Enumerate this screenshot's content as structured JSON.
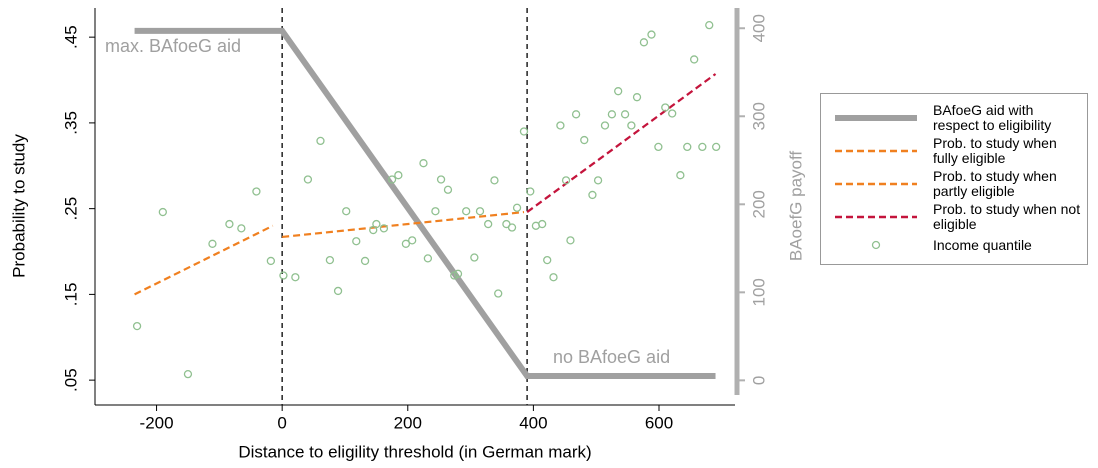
{
  "chart_data": {
    "type": "line",
    "xlabel": "Distance to eligility threshold (in German mark)",
    "ylabel": "Probability to study",
    "y2label": "BAoefG payoff",
    "annotations": [
      "max. BAfoeG aid",
      "no BAfoeG aid"
    ],
    "xlim": [
      -298,
      721
    ],
    "xticks": [
      -200,
      0,
      200,
      400,
      600
    ],
    "ylim": [
      0.021,
      0.484
    ],
    "yticks": [
      {
        "value": 0.05,
        "label": ".05"
      },
      {
        "value": 0.15,
        "label": ".15"
      },
      {
        "value": 0.25,
        "label": ".25"
      },
      {
        "value": 0.35,
        "label": ".35"
      },
      {
        "value": 0.45,
        "label": ".45"
      }
    ],
    "y2lim": [
      -28,
      423
    ],
    "y2ticks": [
      0,
      100,
      200,
      300,
      400
    ],
    "vlines": [
      0,
      390
    ],
    "series": [
      {
        "name": "BAfoeG aid with respect to eligibility",
        "type": "line",
        "axis": "y2",
        "color": "#a0a0a0",
        "dashed": false,
        "x": [
          -235,
          0,
          390,
          690
        ],
        "values": [
          397,
          397,
          5,
          5
        ]
      },
      {
        "name": "Prob. to study when fully eligible",
        "type": "line",
        "color": "#f08020",
        "dashed": true,
        "x": [
          -235,
          -15
        ],
        "values": [
          0.15,
          0.23
        ]
      },
      {
        "name": "Prob. to study when partly eligible",
        "type": "line",
        "color": "#f08020",
        "dashed": true,
        "x": [
          0,
          385
        ],
        "values": [
          0.217,
          0.246
        ]
      },
      {
        "name": "Prob. to study when not eligible",
        "type": "line",
        "color": "#c4143c",
        "dashed": true,
        "x": [
          390,
          690
        ],
        "values": [
          0.246,
          0.407
        ]
      },
      {
        "name": "Income quantile",
        "type": "scatter",
        "color": "#90c090",
        "x": [
          -231,
          -190,
          -150,
          -111,
          -84,
          -65,
          -41,
          -18,
          2,
          21,
          41,
          61,
          76,
          89,
          102,
          118,
          132,
          145,
          150,
          162,
          175,
          185,
          197,
          207,
          225,
          232,
          244,
          253,
          264,
          274,
          280,
          293,
          306,
          315,
          328,
          338,
          344,
          357,
          366,
          374,
          385,
          395,
          404,
          414,
          422,
          432,
          443,
          452,
          459,
          468,
          481,
          494,
          503,
          514,
          525,
          535,
          546,
          556,
          565,
          576,
          588,
          599,
          610,
          621,
          634,
          645,
          656,
          669,
          680,
          691
        ],
        "values": [
          0.113,
          0.246,
          0.057,
          0.209,
          0.232,
          0.227,
          0.27,
          0.189,
          0.172,
          0.17,
          0.284,
          0.329,
          0.19,
          0.154,
          0.247,
          0.212,
          0.189,
          0.225,
          0.232,
          0.227,
          0.284,
          0.289,
          0.209,
          0.213,
          0.303,
          0.192,
          0.247,
          0.284,
          0.272,
          0.172,
          0.174,
          0.247,
          0.193,
          0.247,
          0.232,
          0.283,
          0.151,
          0.232,
          0.228,
          0.251,
          0.34,
          0.27,
          0.23,
          0.232,
          0.19,
          0.17,
          0.347,
          0.283,
          0.213,
          0.36,
          0.33,
          0.266,
          0.283,
          0.347,
          0.36,
          0.387,
          0.36,
          0.347,
          0.38,
          0.444,
          0.453,
          0.322,
          0.368,
          0.361,
          0.289,
          0.322,
          0.424,
          0.322,
          0.464,
          0.322
        ]
      }
    ]
  }
}
